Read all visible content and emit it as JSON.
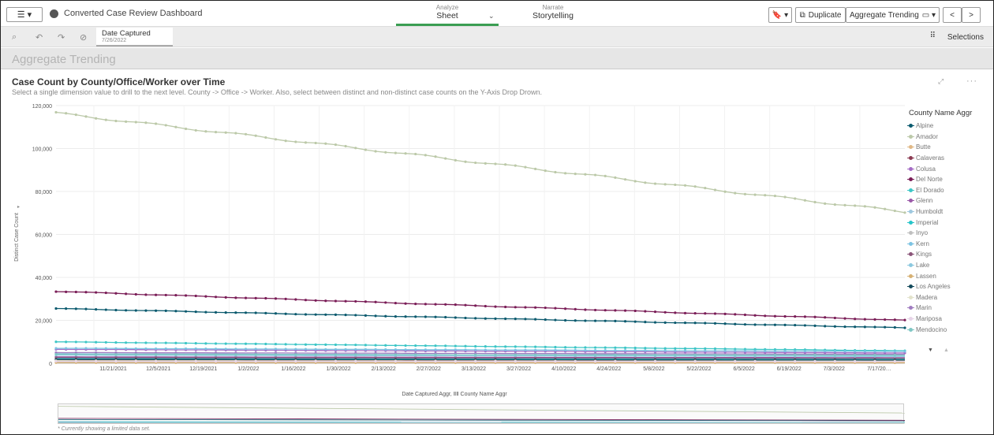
{
  "app": {
    "title": "Converted Case Review Dashboard",
    "menu_label": "☰ ▾"
  },
  "nav": {
    "analyze": {
      "small": "Analyze",
      "big": "Sheet"
    },
    "narrate": {
      "small": "Narrate",
      "big": "Storytelling"
    }
  },
  "toolbar": {
    "bookmark": "🔖 ▾",
    "duplicate": "Duplicate",
    "sheet_select": "Aggregate Trending",
    "prev": "<",
    "next": ">"
  },
  "selection": {
    "field": "Date Captured",
    "value": "7/26/2022",
    "selections_label": "Selections"
  },
  "sheet": {
    "title": "Aggregate Trending"
  },
  "chart": {
    "title": "Case Count by County/Office/Worker over Time",
    "subtitle": "Select a single dimension value to drill to the next level. County -> Office -> Worker. Also, select between distinct and non-distinct case counts on the Y-Axis Drop Drown.",
    "ylabel": "Distinct Case Count",
    "xaxis_title": "Date Captured Aggr, ⅡⅡ County Name Aggr",
    "footnote": "* Currently showing a limited data set.",
    "legend_title": "County Name Aggr"
  },
  "colors": {
    "accent": "#3a9e52"
  },
  "chart_data": {
    "type": "line",
    "title": "Case Count by County/Office/Worker over Time",
    "xlabel": "Date Captured Aggr, County Name Aggr",
    "ylabel": "Distinct Case Count",
    "ylim": [
      0,
      120000
    ],
    "yticks": [
      "0",
      "20,000",
      "40,000",
      "60,000",
      "80,000",
      "100,000",
      "120,000"
    ],
    "xticks": [
      "11/21/2021",
      "12/5/2021",
      "12/19/2021",
      "1/2/2022",
      "1/16/2022",
      "1/30/2022",
      "2/13/2022",
      "2/27/2022",
      "3/13/2022",
      "3/27/2022",
      "4/10/2022",
      "4/24/2022",
      "5/8/2022",
      "5/22/2022",
      "6/5/2022",
      "6/19/2022",
      "7/3/2022",
      "7/17/20…"
    ],
    "legend": "right",
    "series": [
      {
        "name": "Alpine",
        "color": "#0b5a6e",
        "start": 25500,
        "end": 16500
      },
      {
        "name": "Amador",
        "color": "#bcc9a9",
        "start": 116500,
        "end": 70500
      },
      {
        "name": "Butte",
        "color": "#e0b886",
        "start": 500,
        "end": 400
      },
      {
        "name": "Calaveras",
        "color": "#8b3a52",
        "start": 1500,
        "end": 1300
      },
      {
        "name": "Colusa",
        "color": "#a46bc5",
        "start": 6500,
        "end": 4800
      },
      {
        "name": "Del Norte",
        "color": "#7a1d57",
        "start": 33500,
        "end": 20000
      },
      {
        "name": "El Dorado",
        "color": "#3cc6c6",
        "start": 10000,
        "end": 5800
      },
      {
        "name": "Glenn",
        "color": "#9a58a8",
        "start": 3000,
        "end": 2600
      },
      {
        "name": "Humboldt",
        "color": "#9ec8df",
        "start": 4500,
        "end": 3500
      },
      {
        "name": "Imperial",
        "color": "#25c4c9",
        "start": 2200,
        "end": 1900
      },
      {
        "name": "Inyo",
        "color": "#bfbfbf",
        "start": 800,
        "end": 700
      },
      {
        "name": "Kern",
        "color": "#7cc3e2",
        "start": 7000,
        "end": 5500
      },
      {
        "name": "Kings",
        "color": "#8a5478",
        "start": 2600,
        "end": 2300
      },
      {
        "name": "Lake",
        "color": "#8bc8df",
        "start": 3800,
        "end": 3200
      },
      {
        "name": "Lassen",
        "color": "#d6b073",
        "start": 300,
        "end": 250
      },
      {
        "name": "Los Angeles",
        "color": "#144a5c",
        "start": 1800,
        "end": 1500
      },
      {
        "name": "Madera",
        "color": "#e3e3cc",
        "start": 1200,
        "end": 1000
      },
      {
        "name": "Marin",
        "color": "#a07cc0",
        "start": 5000,
        "end": 4200
      },
      {
        "name": "Mariposa",
        "color": "#e7d4e8",
        "start": 900,
        "end": 800
      },
      {
        "name": "Mendocino",
        "color": "#7fc7c4",
        "start": 4200,
        "end": 3800
      }
    ]
  }
}
